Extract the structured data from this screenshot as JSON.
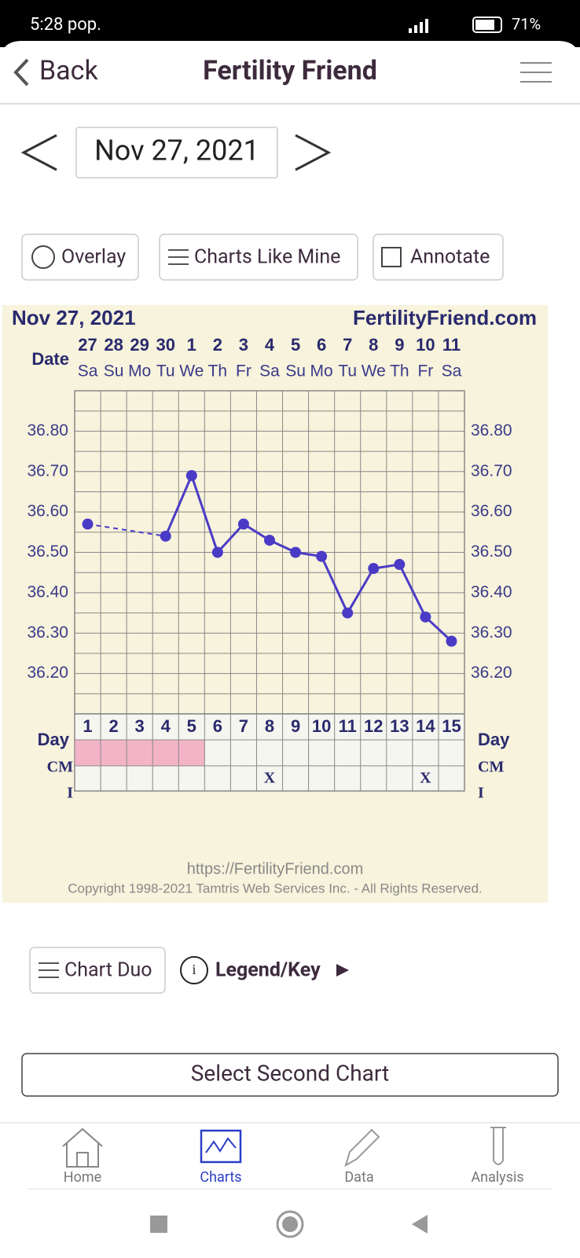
{
  "status_bar": {
    "time": "5:28 pop.",
    "battery": "71%"
  },
  "header": {
    "back": "Back",
    "title": "Fertility Friend"
  },
  "date_nav": {
    "date": "Nov 27, 2021"
  },
  "toolbar": {
    "buttons": [
      "Overlay",
      "Charts Like Mine",
      "Annotate"
    ]
  },
  "chart_data": {
    "type": "line",
    "title": "Nov 27, 2021",
    "site": "FertilityFriend.com",
    "date_label": "Date",
    "day_label": "Day",
    "cm_label": "CM",
    "i_label": "I",
    "dates": [
      "27",
      "28",
      "29",
      "30",
      "1",
      "2",
      "3",
      "4",
      "5",
      "6",
      "7",
      "8",
      "9",
      "10",
      "11"
    ],
    "weekdays": [
      "Sa",
      "Su",
      "Mo",
      "Tu",
      "We",
      "Th",
      "Fr",
      "Sa",
      "Su",
      "Mo",
      "Tu",
      "We",
      "Th",
      "Fr",
      "Sa"
    ],
    "categories": [
      "1",
      "2",
      "3",
      "4",
      "5",
      "6",
      "7",
      "8",
      "9",
      "10",
      "11",
      "12",
      "13",
      "14",
      "15"
    ],
    "series": [
      {
        "color": "#4a3bc6",
        "values": [
          36.57,
          null,
          null,
          36.54,
          36.69,
          36.5,
          36.57,
          36.53,
          36.5,
          36.49,
          36.35,
          36.46,
          36.47,
          36.34,
          36.28
        ]
      }
    ],
    "ylim": [
      36.1,
      36.9
    ],
    "yticks": [
      {
        "value": 36.8,
        "label": "36.80"
      },
      {
        "value": 36.7,
        "label": "36.70"
      },
      {
        "value": 36.6,
        "label": "36.60"
      },
      {
        "value": 36.5,
        "label": "36.50"
      },
      {
        "value": 36.4,
        "label": "36.40"
      },
      {
        "value": 36.3,
        "label": "36.30"
      },
      {
        "value": 36.2,
        "label": "36.20"
      }
    ],
    "grid": true,
    "cm_color": "#f4b4c8",
    "cm_marked": [
      true,
      true,
      true,
      true,
      true,
      false,
      false,
      false,
      false,
      false,
      false,
      false,
      false,
      false,
      false
    ],
    "intercourse": [
      null,
      null,
      null,
      null,
      null,
      null,
      null,
      "X",
      null,
      null,
      null,
      null,
      null,
      "X",
      null
    ],
    "footer_url": "https://FertilityFriend.com",
    "copyright": "Copyright 1998-2021 Tamtris Web Services Inc. - All Rights Reserved."
  },
  "chart_actions": {
    "chart_duo": "Chart Duo",
    "legend": "Legend/Key",
    "second_chart": "Select Second Chart"
  },
  "bottom_nav": [
    "Home",
    "Charts",
    "Data",
    "Analysis"
  ]
}
